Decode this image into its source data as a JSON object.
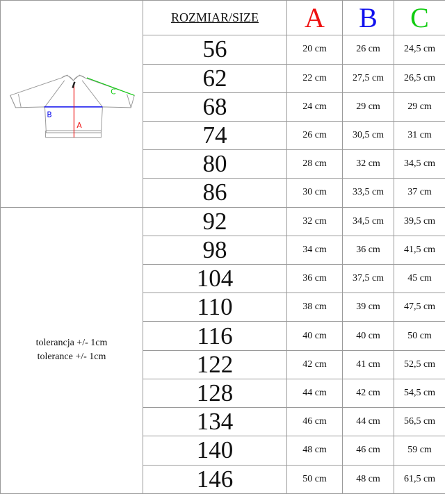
{
  "header": {
    "size_label": "ROZMIAR/SIZE",
    "col_a": "A",
    "col_b": "B",
    "col_c": "C"
  },
  "colors": {
    "a": "#ee1111",
    "b": "#1111ee",
    "c": "#11cc11"
  },
  "diagram": {
    "label_a": "A",
    "label_b": "B",
    "label_c": "C",
    "icon": "jacket-measurement-icon"
  },
  "tolerance": {
    "line1": "tolerancja +/- 1cm",
    "line2": "tolerance +/- 1cm"
  },
  "rows": [
    {
      "size": "56",
      "a": "20 cm",
      "b": "26 cm",
      "c": "24,5 cm"
    },
    {
      "size": "62",
      "a": "22 cm",
      "b": "27,5 cm",
      "c": "26,5 cm"
    },
    {
      "size": "68",
      "a": "24 cm",
      "b": "29 cm",
      "c": "29 cm"
    },
    {
      "size": "74",
      "a": "26 cm",
      "b": "30,5 cm",
      "c": "31 cm"
    },
    {
      "size": "80",
      "a": "28 cm",
      "b": "32 cm",
      "c": "34,5 cm"
    },
    {
      "size": "86",
      "a": "30 cm",
      "b": "33,5 cm",
      "c": "37 cm"
    },
    {
      "size": "92",
      "a": "32 cm",
      "b": "34,5 cm",
      "c": "39,5 cm"
    },
    {
      "size": "98",
      "a": "34 cm",
      "b": "36 cm",
      "c": "41,5 cm"
    },
    {
      "size": "104",
      "a": "36 cm",
      "b": "37,5 cm",
      "c": "45 cm"
    },
    {
      "size": "110",
      "a": "38 cm",
      "b": "39 cm",
      "c": "47,5 cm"
    },
    {
      "size": "116",
      "a": "40 cm",
      "b": "40 cm",
      "c": "50 cm"
    },
    {
      "size": "122",
      "a": "42 cm",
      "b": "41 cm",
      "c": "52,5 cm"
    },
    {
      "size": "128",
      "a": "44 cm",
      "b": "42 cm",
      "c": "54,5 cm"
    },
    {
      "size": "134",
      "a": "46 cm",
      "b": "44 cm",
      "c": "56,5 cm"
    },
    {
      "size": "140",
      "a": "48 cm",
      "b": "46 cm",
      "c": "59 cm"
    },
    {
      "size": "146",
      "a": "50 cm",
      "b": "48 cm",
      "c": "61,5 cm"
    }
  ]
}
